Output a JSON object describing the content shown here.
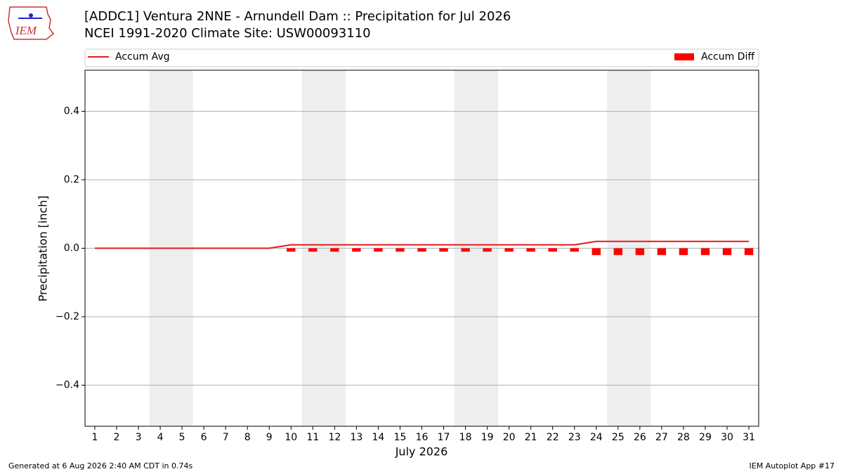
{
  "logo": "IEM",
  "footer": {
    "left": "Generated at 6 Aug 2026 2:40 AM CDT in 0.74s",
    "right": "IEM Autoplot App #17"
  },
  "chart_data": {
    "type": "line_bar",
    "title": "[ADDC1] Ventura 2NNE - Arnundell Dam :: Precipitation for Jul 2026",
    "subtitle": "NCEI 1991-2020 Climate Site: USW00093110",
    "x_label": "July 2026",
    "y_label": "Precipitation [inch]",
    "x": [
      1,
      2,
      3,
      4,
      5,
      6,
      7,
      8,
      9,
      10,
      11,
      12,
      13,
      14,
      15,
      16,
      17,
      18,
      19,
      20,
      21,
      22,
      23,
      24,
      25,
      26,
      27,
      28,
      29,
      30,
      31
    ],
    "series": [
      {
        "name": "Accum Avg",
        "kind": "line",
        "color": "#e31a1c",
        "values": [
          0,
          0,
          0,
          0,
          0,
          0,
          0,
          0,
          0,
          0.01,
          0.01,
          0.01,
          0.01,
          0.01,
          0.01,
          0.01,
          0.01,
          0.01,
          0.01,
          0.01,
          0.01,
          0.01,
          0.01,
          0.02,
          0.02,
          0.02,
          0.02,
          0.02,
          0.02,
          0.02,
          0.02
        ]
      },
      {
        "name": "Accum Diff",
        "kind": "bar",
        "color": "#ff0000",
        "values": [
          0,
          0,
          0,
          0,
          0,
          0,
          0,
          0,
          0,
          -0.01,
          -0.01,
          -0.01,
          -0.01,
          -0.01,
          -0.01,
          -0.01,
          -0.01,
          -0.01,
          -0.01,
          -0.01,
          -0.01,
          -0.01,
          -0.01,
          -0.02,
          -0.02,
          -0.02,
          -0.02,
          -0.02,
          -0.02,
          -0.02,
          -0.02
        ]
      }
    ],
    "weekend_spans": [
      [
        3.5,
        5.5
      ],
      [
        10.5,
        12.5
      ],
      [
        17.5,
        19.5
      ],
      [
        24.5,
        26.5
      ]
    ],
    "xlim": [
      0.55,
      31.45
    ],
    "ylim": [
      -0.52,
      0.52
    ],
    "xticks": [
      1,
      2,
      3,
      4,
      5,
      6,
      7,
      8,
      9,
      10,
      11,
      12,
      13,
      14,
      15,
      16,
      17,
      18,
      19,
      20,
      21,
      22,
      23,
      24,
      25,
      26,
      27,
      28,
      29,
      30,
      31
    ],
    "yticks": [
      {
        "value": -0.4,
        "label": "−0.4"
      },
      {
        "value": -0.2,
        "label": "−0.2"
      },
      {
        "value": 0,
        "label": "0.0"
      },
      0.2,
      0.4
    ],
    "grid": true
  }
}
